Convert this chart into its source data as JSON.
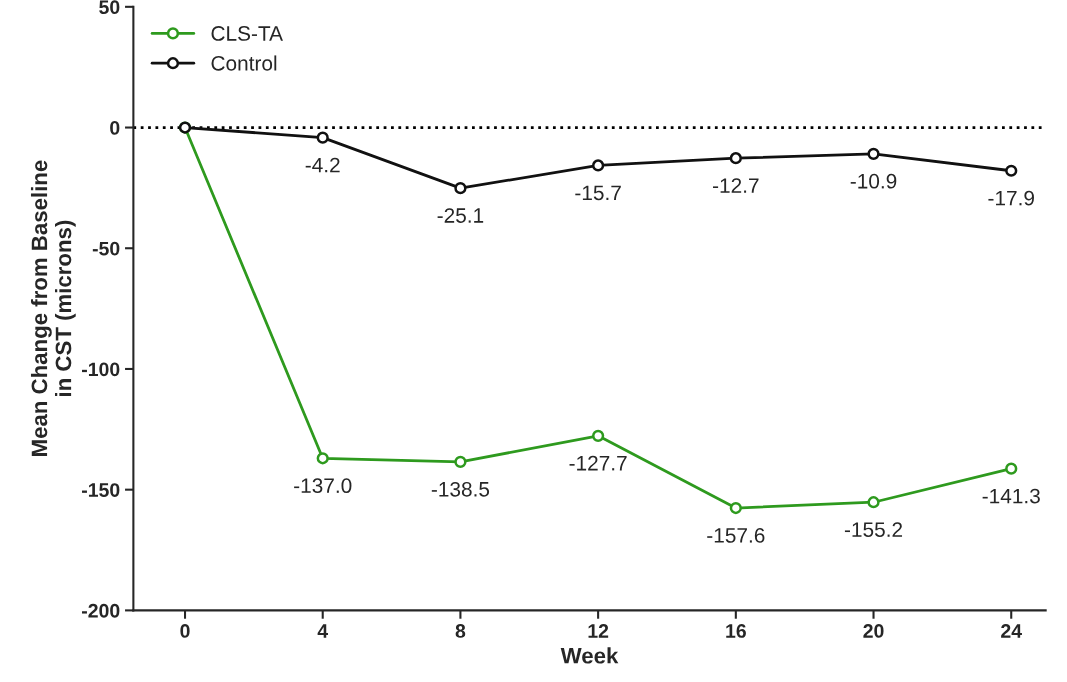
{
  "chart_data": {
    "type": "line",
    "xlabel": "Week",
    "ylabel": "Mean Change from Baseline\nin CST (microns)",
    "x": [
      0,
      4,
      8,
      12,
      16,
      20,
      24
    ],
    "series": [
      {
        "name": "CLS-TA",
        "color": "#2e9a1e",
        "values": [
          0,
          -137.0,
          -138.5,
          -127.7,
          -157.6,
          -155.2,
          -141.3
        ],
        "value_labels": [
          null,
          "-137.0",
          "-138.5",
          "-127.7",
          "-157.6",
          "-155.2",
          "-141.3"
        ]
      },
      {
        "name": "Control",
        "color": "#111111",
        "values": [
          0,
          -4.2,
          -25.1,
          -15.7,
          -12.7,
          -10.9,
          -17.9
        ],
        "value_labels": [
          null,
          "-4.2",
          "-25.1",
          "-15.7",
          "-12.7",
          "-10.9",
          "-17.9"
        ]
      }
    ],
    "xlim": [
      -1.5,
      25
    ],
    "xticks": [
      0,
      4,
      8,
      12,
      16,
      20,
      24
    ],
    "ylim": [
      -200,
      50
    ],
    "yticks": [
      -200,
      -150,
      -100,
      -50,
      0,
      50
    ],
    "ref_lines": [
      {
        "axis": "y",
        "value": 0,
        "line_style": "dotted",
        "color": "#000000"
      }
    ],
    "marker": "circle",
    "line_style": "solid",
    "grid": false,
    "legend": "top left"
  }
}
